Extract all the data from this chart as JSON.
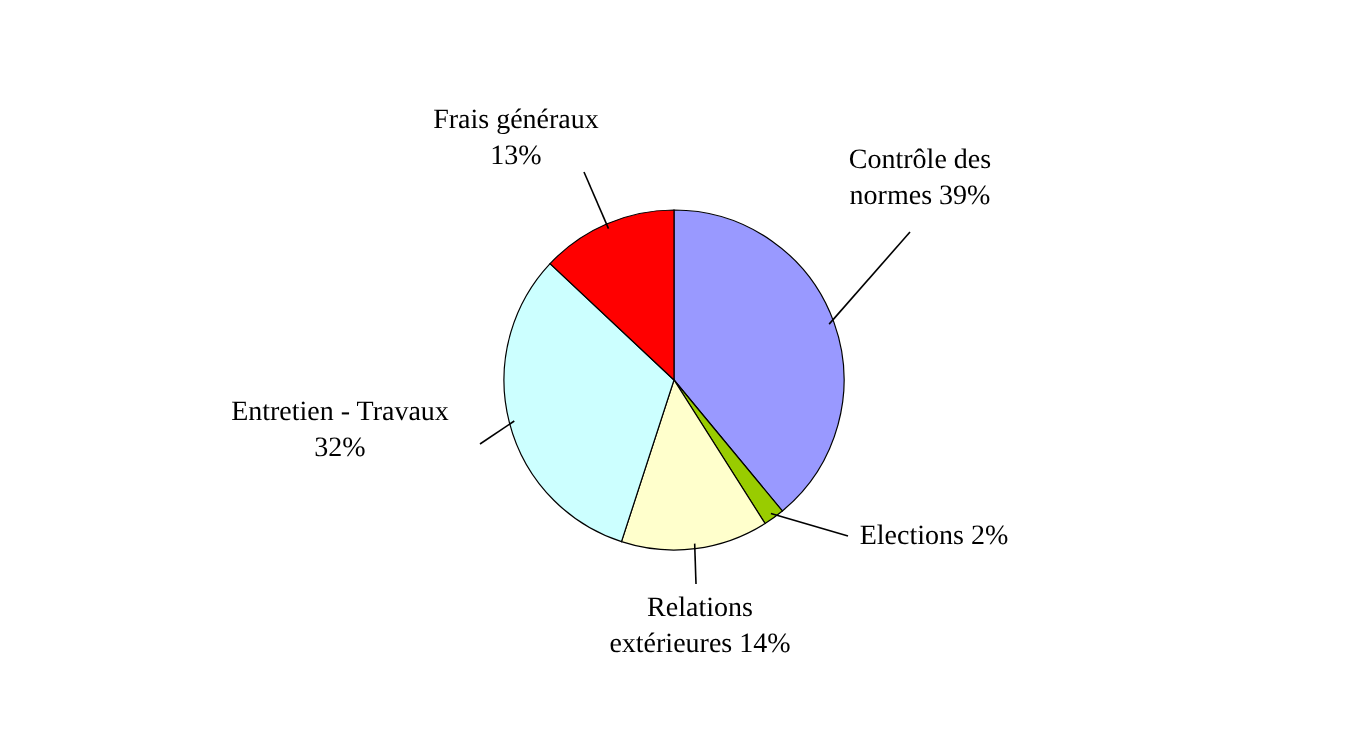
{
  "chart_data": {
    "type": "pie",
    "categories": [
      "Contrôle des normes",
      "Elections",
      "Relations extérieures",
      "Entretien - Travaux",
      "Frais généraux"
    ],
    "values": [
      39,
      2,
      14,
      32,
      13
    ],
    "value_labels": [
      "39%",
      "2%",
      "14%",
      "32%",
      "13%"
    ],
    "colors": [
      "#9999ff",
      "#99cc00",
      "#ffffcc",
      "#ccffff",
      "#ff0000"
    ]
  }
}
